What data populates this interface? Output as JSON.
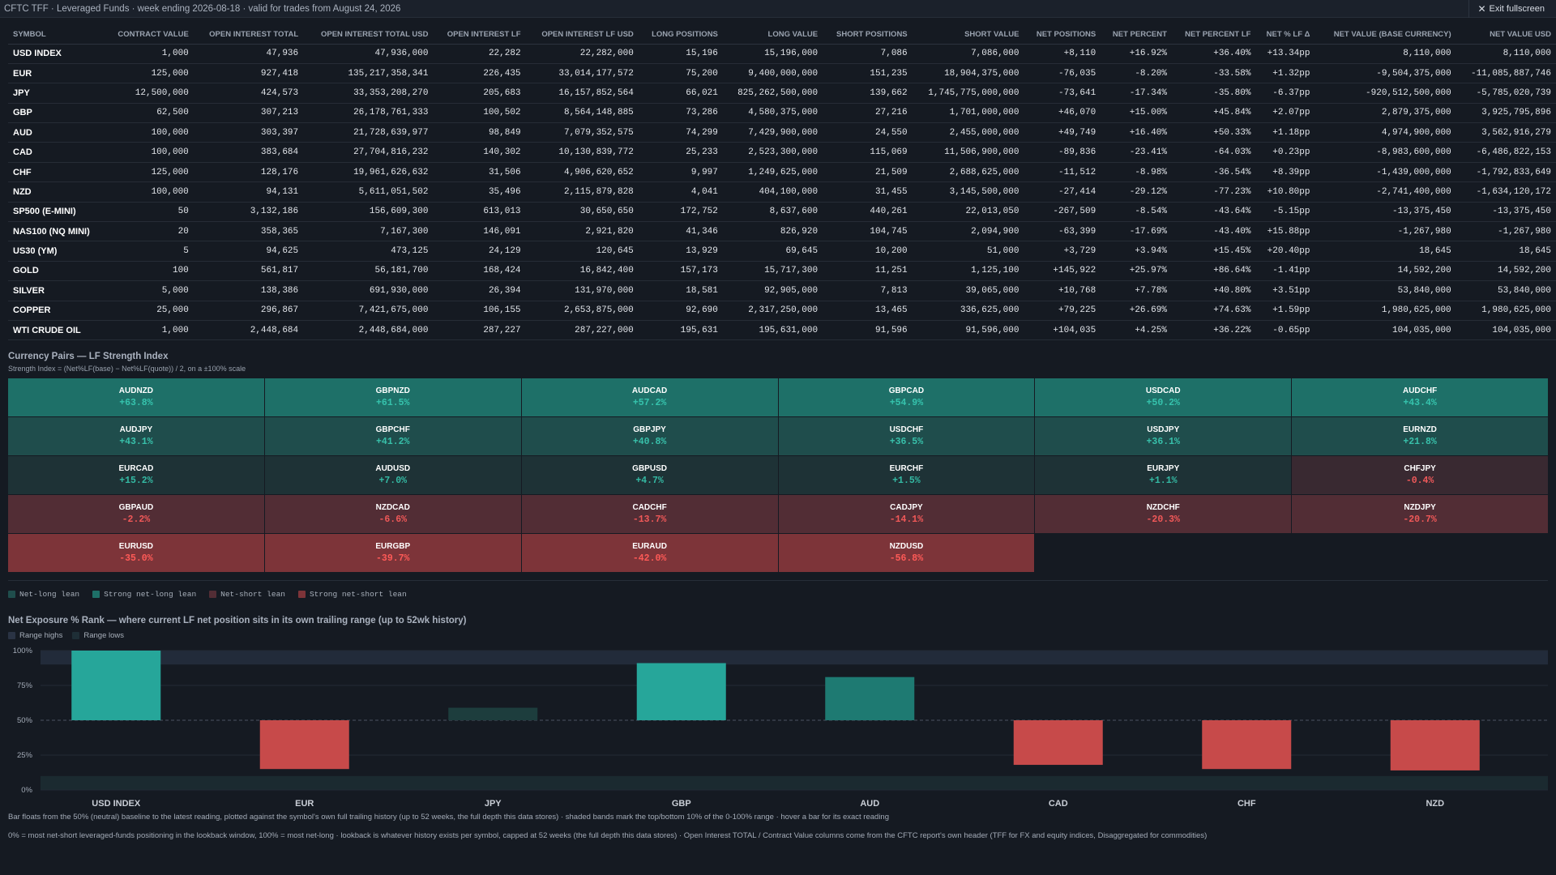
{
  "header": {
    "title": "CFTC TFF · Leveraged Funds · week ending 2026-08-18 · valid for trades from August 24, 2026",
    "exit_label": "Exit fullscreen"
  },
  "table": {
    "columns": [
      "SYMBOL",
      "CONTRACT VALUE",
      "OPEN INTEREST TOTAL",
      "OPEN INTEREST TOTAL USD",
      "OPEN INTEREST LF",
      "OPEN INTEREST LF USD",
      "LONG POSITIONS",
      "LONG VALUE",
      "SHORT POSITIONS",
      "SHORT VALUE",
      "NET POSITIONS",
      "NET PERCENT",
      "NET PERCENT LF",
      "NET % LF Δ",
      "NET VALUE (BASE CURRENCY)",
      "NET VALUE USD"
    ],
    "rows": [
      [
        "USD INDEX",
        "1,000",
        "47,936",
        "47,936,000",
        "22,282",
        "22,282,000",
        "15,196",
        "15,196,000",
        "7,086",
        "7,086,000",
        "+8,110",
        "+16.92%",
        "+36.40%",
        "+13.34pp",
        "8,110,000",
        "8,110,000"
      ],
      [
        "EUR",
        "125,000",
        "927,418",
        "135,217,358,341",
        "226,435",
        "33,014,177,572",
        "75,200",
        "9,400,000,000",
        "151,235",
        "18,904,375,000",
        "-76,035",
        "-8.20%",
        "-33.58%",
        "+1.32pp",
        "-9,504,375,000",
        "-11,085,887,746"
      ],
      [
        "JPY",
        "12,500,000",
        "424,573",
        "33,353,208,270",
        "205,683",
        "16,157,852,564",
        "66,021",
        "825,262,500,000",
        "139,662",
        "1,745,775,000,000",
        "-73,641",
        "-17.34%",
        "-35.80%",
        "-6.37pp",
        "-920,512,500,000",
        "-5,785,020,739"
      ],
      [
        "GBP",
        "62,500",
        "307,213",
        "26,178,761,333",
        "100,502",
        "8,564,148,885",
        "73,286",
        "4,580,375,000",
        "27,216",
        "1,701,000,000",
        "+46,070",
        "+15.00%",
        "+45.84%",
        "+2.07pp",
        "2,879,375,000",
        "3,925,795,896"
      ],
      [
        "AUD",
        "100,000",
        "303,397",
        "21,728,639,977",
        "98,849",
        "7,079,352,575",
        "74,299",
        "7,429,900,000",
        "24,550",
        "2,455,000,000",
        "+49,749",
        "+16.40%",
        "+50.33%",
        "+1.18pp",
        "4,974,900,000",
        "3,562,916,279"
      ],
      [
        "CAD",
        "100,000",
        "383,684",
        "27,704,816,232",
        "140,302",
        "10,130,839,772",
        "25,233",
        "2,523,300,000",
        "115,069",
        "11,506,900,000",
        "-89,836",
        "-23.41%",
        "-64.03%",
        "+0.23pp",
        "-8,983,600,000",
        "-6,486,822,153"
      ],
      [
        "CHF",
        "125,000",
        "128,176",
        "19,961,626,632",
        "31,506",
        "4,906,620,652",
        "9,997",
        "1,249,625,000",
        "21,509",
        "2,688,625,000",
        "-11,512",
        "-8.98%",
        "-36.54%",
        "+8.39pp",
        "-1,439,000,000",
        "-1,792,833,649"
      ],
      [
        "NZD",
        "100,000",
        "94,131",
        "5,611,051,502",
        "35,496",
        "2,115,879,828",
        "4,041",
        "404,100,000",
        "31,455",
        "3,145,500,000",
        "-27,414",
        "-29.12%",
        "-77.23%",
        "+10.80pp",
        "-2,741,400,000",
        "-1,634,120,172"
      ],
      [
        "SP500 (E-MINI)",
        "50",
        "3,132,186",
        "156,609,300",
        "613,013",
        "30,650,650",
        "172,752",
        "8,637,600",
        "440,261",
        "22,013,050",
        "-267,509",
        "-8.54%",
        "-43.64%",
        "-5.15pp",
        "-13,375,450",
        "-13,375,450"
      ],
      [
        "NAS100 (NQ MINI)",
        "20",
        "358,365",
        "7,167,300",
        "146,091",
        "2,921,820",
        "41,346",
        "826,920",
        "104,745",
        "2,094,900",
        "-63,399",
        "-17.69%",
        "-43.40%",
        "+15.88pp",
        "-1,267,980",
        "-1,267,980"
      ],
      [
        "US30 (YM)",
        "5",
        "94,625",
        "473,125",
        "24,129",
        "120,645",
        "13,929",
        "69,645",
        "10,200",
        "51,000",
        "+3,729",
        "+3.94%",
        "+15.45%",
        "+20.40pp",
        "18,645",
        "18,645"
      ],
      [
        "GOLD",
        "100",
        "561,817",
        "56,181,700",
        "168,424",
        "16,842,400",
        "157,173",
        "15,717,300",
        "11,251",
        "1,125,100",
        "+145,922",
        "+25.97%",
        "+86.64%",
        "-1.41pp",
        "14,592,200",
        "14,592,200"
      ],
      [
        "SILVER",
        "5,000",
        "138,386",
        "691,930,000",
        "26,394",
        "131,970,000",
        "18,581",
        "92,905,000",
        "7,813",
        "39,065,000",
        "+10,768",
        "+7.78%",
        "+40.80%",
        "+3.51pp",
        "53,840,000",
        "53,840,000"
      ],
      [
        "COPPER",
        "25,000",
        "296,867",
        "7,421,675,000",
        "106,155",
        "2,653,875,000",
        "92,690",
        "2,317,250,000",
        "13,465",
        "336,625,000",
        "+79,225",
        "+26.69%",
        "+74.63%",
        "+1.59pp",
        "1,980,625,000",
        "1,980,625,000"
      ],
      [
        "WTI CRUDE OIL",
        "1,000",
        "2,448,684",
        "2,448,684,000",
        "287,227",
        "287,227,000",
        "195,631",
        "195,631,000",
        "91,596",
        "91,596,000",
        "+104,035",
        "+4.25%",
        "+36.22%",
        "-0.65pp",
        "104,035,000",
        "104,035,000"
      ]
    ]
  },
  "strength": {
    "title": "Currency Pairs — LF Strength Index",
    "subtitle": "Strength Index = (Net%LF(base) − Net%LF(quote)) / 2, on a ±100% scale",
    "pairs": [
      {
        "pair": "AUDNZD",
        "value": "+63.8%",
        "tone": "t-strong"
      },
      {
        "pair": "GBPNZD",
        "value": "+61.5%",
        "tone": "t-strong"
      },
      {
        "pair": "AUDCAD",
        "value": "+57.2%",
        "tone": "t-strong"
      },
      {
        "pair": "GBPCAD",
        "value": "+54.9%",
        "tone": "t-strong"
      },
      {
        "pair": "USDCAD",
        "value": "+50.2%",
        "tone": "t-strong"
      },
      {
        "pair": "AUDCHF",
        "value": "+43.4%",
        "tone": "t-strong"
      },
      {
        "pair": "AUDJPY",
        "value": "+43.1%",
        "tone": "t-long"
      },
      {
        "pair": "GBPCHF",
        "value": "+41.2%",
        "tone": "t-long"
      },
      {
        "pair": "GBPJPY",
        "value": "+40.8%",
        "tone": "t-long"
      },
      {
        "pair": "USDCHF",
        "value": "+36.5%",
        "tone": "t-long"
      },
      {
        "pair": "USDJPY",
        "value": "+36.1%",
        "tone": "t-long"
      },
      {
        "pair": "EURNZD",
        "value": "+21.8%",
        "tone": "t-long"
      },
      {
        "pair": "EURCAD",
        "value": "+15.2%",
        "tone": "t-weak"
      },
      {
        "pair": "AUDUSD",
        "value": "+7.0%",
        "tone": "t-weak"
      },
      {
        "pair": "GBPUSD",
        "value": "+4.7%",
        "tone": "t-weak"
      },
      {
        "pair": "EURCHF",
        "value": "+1.5%",
        "tone": "t-weak"
      },
      {
        "pair": "EURJPY",
        "value": "+1.1%",
        "tone": "t-weak"
      },
      {
        "pair": "CHFJPY",
        "value": "-0.4%",
        "tone": "t-wshort"
      },
      {
        "pair": "GBPAUD",
        "value": "-2.2%",
        "tone": "t-short"
      },
      {
        "pair": "NZDCAD",
        "value": "-6.6%",
        "tone": "t-short"
      },
      {
        "pair": "CADCHF",
        "value": "-13.7%",
        "tone": "t-short"
      },
      {
        "pair": "CADJPY",
        "value": "-14.1%",
        "tone": "t-short"
      },
      {
        "pair": "NZDCHF",
        "value": "-20.3%",
        "tone": "t-short"
      },
      {
        "pair": "NZDJPY",
        "value": "-20.7%",
        "tone": "t-short"
      },
      {
        "pair": "EURUSD",
        "value": "-35.0%",
        "tone": "t-sshort"
      },
      {
        "pair": "EURGBP",
        "value": "-39.7%",
        "tone": "t-sshort"
      },
      {
        "pair": "EURAUD",
        "value": "-42.0%",
        "tone": "t-sshort"
      },
      {
        "pair": "NZDUSD",
        "value": "-56.8%",
        "tone": "t-sshort"
      }
    ],
    "legend": [
      {
        "label": "Net-long lean",
        "color": "#1f4d4c"
      },
      {
        "label": "Strong net-long lean",
        "color": "#1e7068"
      },
      {
        "label": "Net-short lean",
        "color": "#522d35"
      },
      {
        "label": "Strong net-short lean",
        "color": "#7d3439"
      }
    ]
  },
  "rank": {
    "title": "Net Exposure % Rank — where current LF net position sits in its own trailing range (up to 52wk history)",
    "legend": [
      {
        "label": "Range highs",
        "color": "#2a3344"
      },
      {
        "label": "Range lows",
        "color": "#1e2e36"
      }
    ],
    "footnote1": "Bar floats from the 50% (neutral) baseline to the latest reading, plotted against the symbol's own full trailing history (up to 52 weeks, the full depth this data stores) · shaded bands mark the top/bottom 10% of the 0-100% range · hover a bar for its exact reading",
    "footnote2": "0% = most net-short leveraged-funds positioning in the lookback window, 100% = most net-long · lookback is whatever history exists per symbol, capped at 52 weeks (the full depth this data stores) · Open Interest TOTAL / Contract Value columns come from the CFTC report's own header (TFF for FX and equity indices, Disaggregated for commodities)"
  },
  "chart_data": {
    "type": "bar",
    "title": "Net Exposure % Rank — where current LF net position sits in its own trailing range (up to 52wk history)",
    "categories": [
      "USD INDEX",
      "EUR",
      "JPY",
      "GBP",
      "AUD",
      "CAD",
      "CHF",
      "NZD"
    ],
    "values": [
      100,
      15,
      59,
      91,
      81,
      18,
      15,
      14
    ],
    "baseline": 50,
    "ylim": [
      0,
      100
    ],
    "yticks": [
      "0%",
      "25%",
      "50%",
      "75%",
      "100%"
    ],
    "colors": {
      "strong_long": "#26a69a",
      "long": "#1e7a72",
      "weak_long": "#1d3d3d",
      "short": "#c74a4a"
    }
  }
}
